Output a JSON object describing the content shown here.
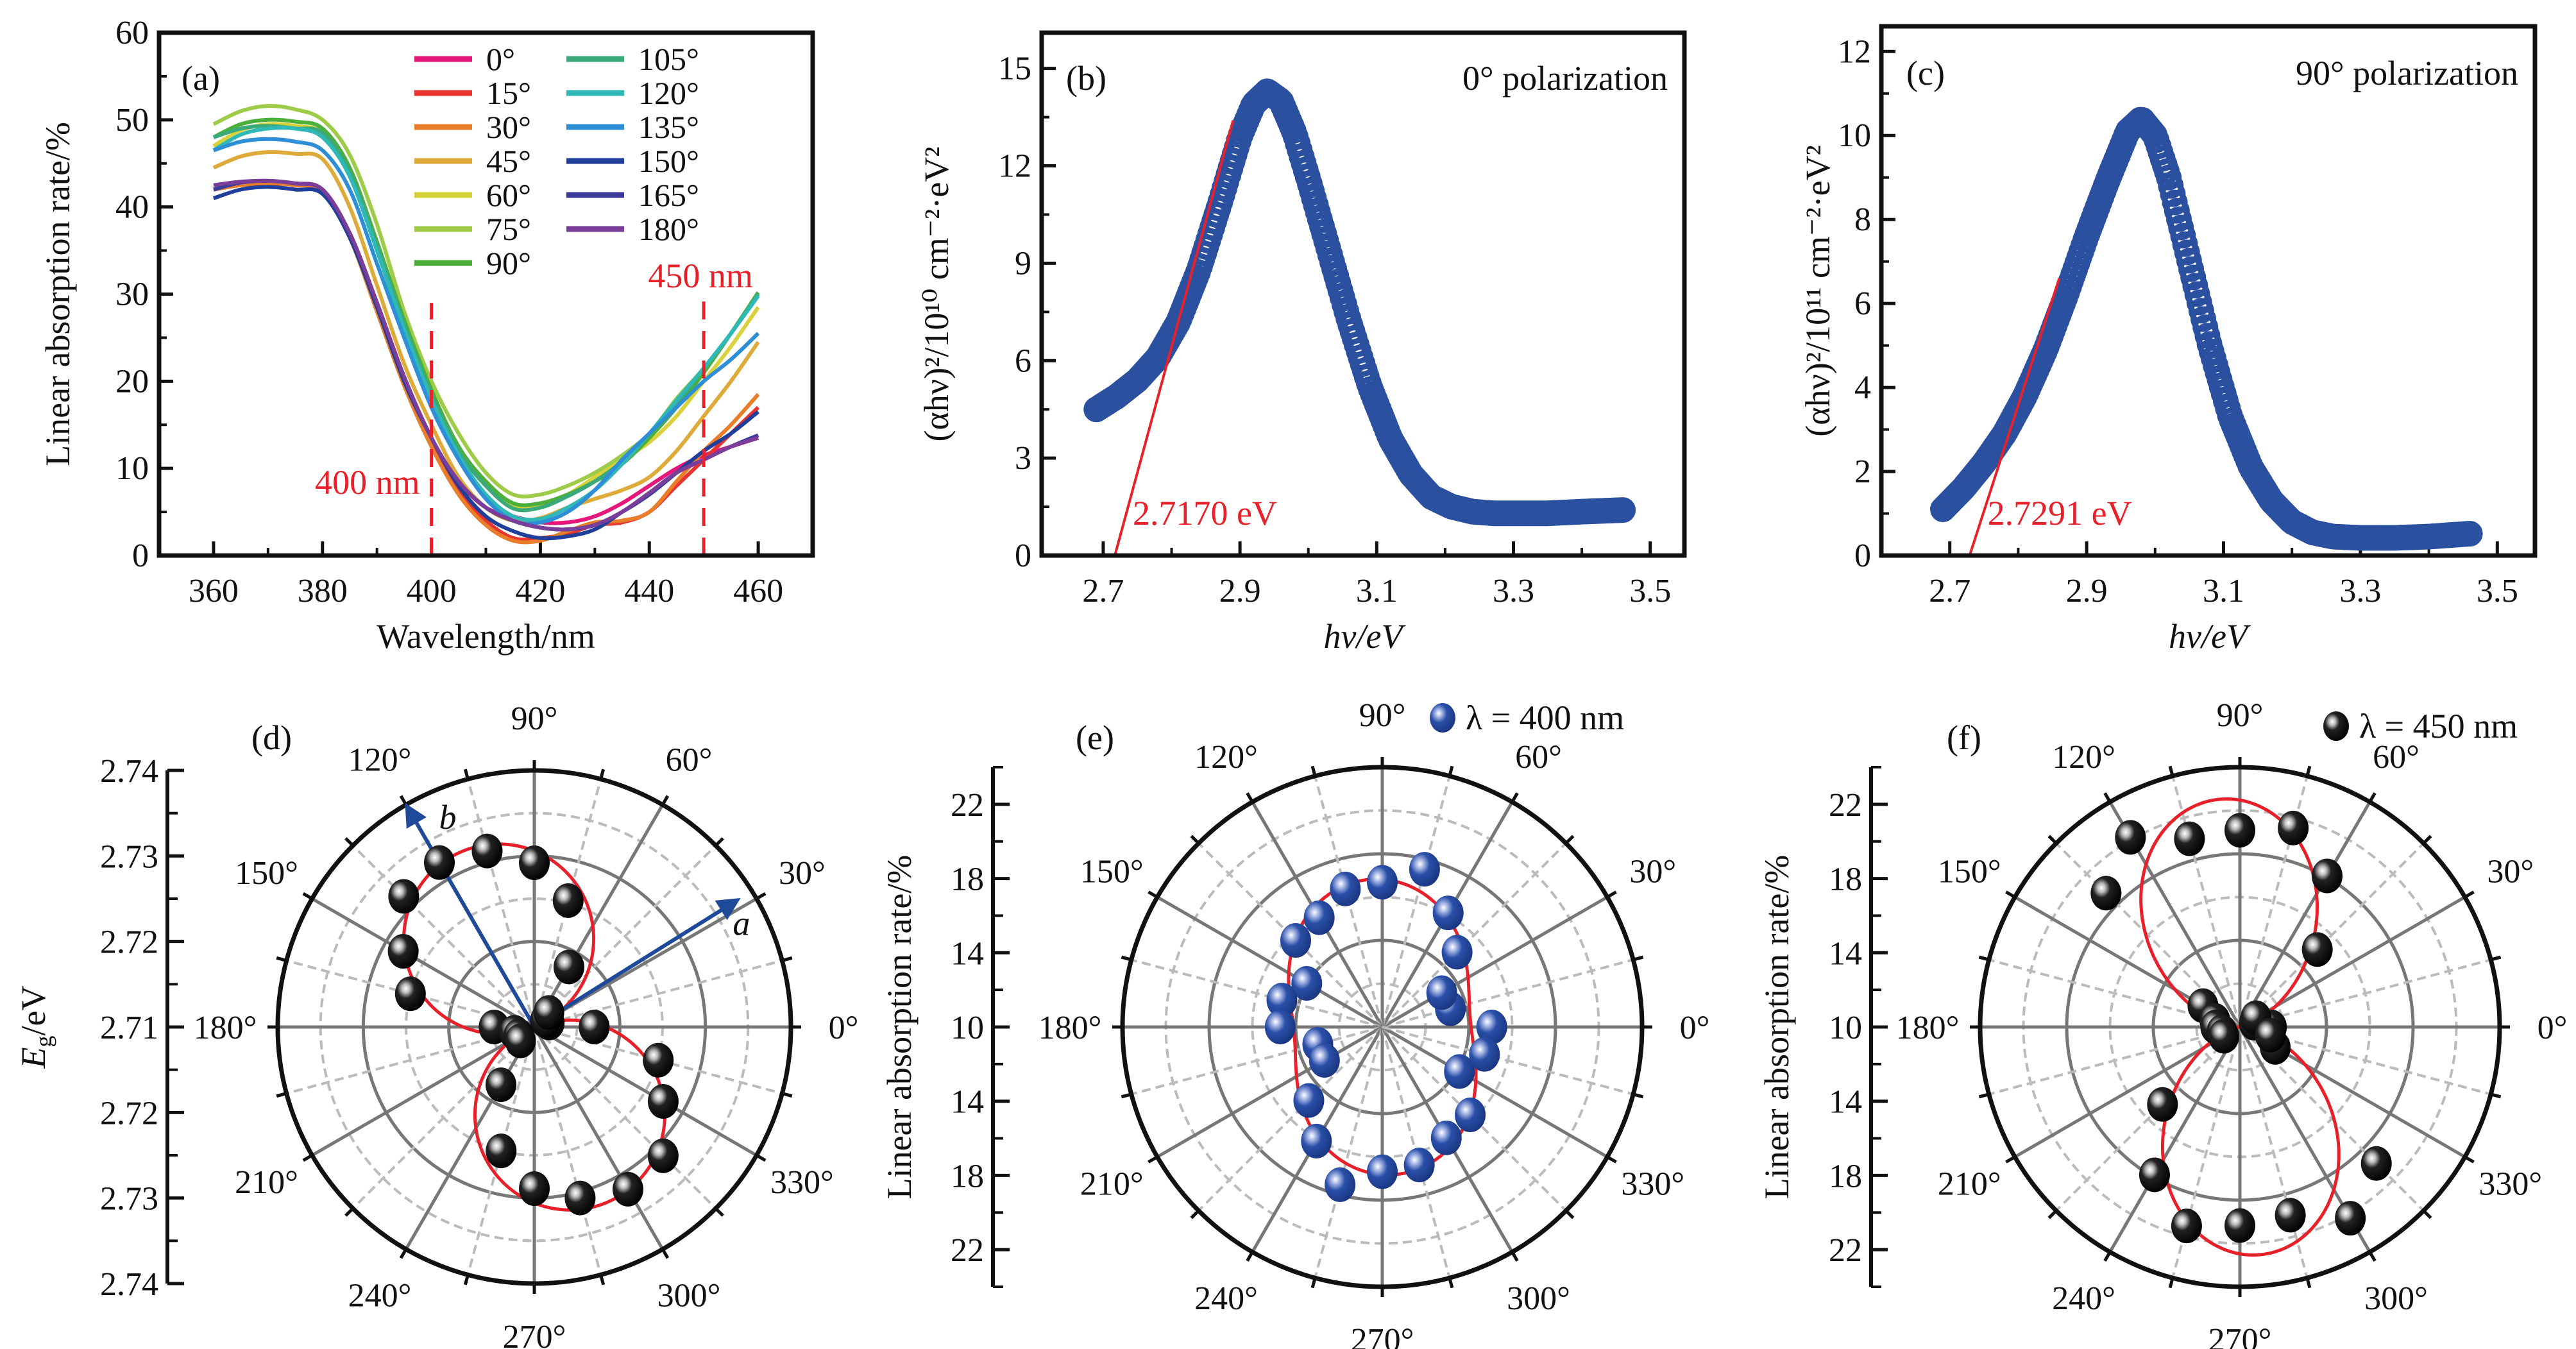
{
  "chart_data": [
    {
      "type": "line",
      "panel_label": "(a)",
      "xlabel": "Wavelength/nm",
      "ylabel": "Linear absorption rate/%",
      "xlim": [
        350,
        470
      ],
      "ylim": [
        0,
        60
      ],
      "xticks": [
        360,
        380,
        400,
        420,
        440,
        460
      ],
      "yticks": [
        0,
        10,
        20,
        30,
        40,
        50,
        60
      ],
      "grid": false,
      "legend_placement": "top-right",
      "x": [
        360,
        365,
        370,
        375,
        380,
        385,
        390,
        395,
        400,
        405,
        410,
        415,
        420,
        425,
        430,
        435,
        440,
        445,
        450,
        455,
        460
      ],
      "series": [
        {
          "name": "0°",
          "color": "#e6177a",
          "values": [
            42.0,
            42.6,
            42.8,
            42.7,
            42.0,
            37.0,
            29.0,
            20.5,
            13.5,
            8.5,
            5.5,
            4.5,
            3.8,
            3.8,
            4.5,
            6.0,
            8.0,
            10.0,
            11.5,
            12.5,
            13.5
          ]
        },
        {
          "name": "15°",
          "color": "#e8342f",
          "values": [
            42.0,
            42.5,
            42.7,
            42.5,
            41.8,
            36.5,
            28.5,
            20.0,
            13.0,
            7.5,
            4.0,
            2.0,
            2.0,
            2.5,
            3.5,
            3.8,
            5.0,
            8.0,
            11.0,
            14.0,
            17.0
          ]
        },
        {
          "name": "30°",
          "color": "#e87e2a",
          "values": [
            42.0,
            42.5,
            42.7,
            42.5,
            41.8,
            36.5,
            28.0,
            19.5,
            12.5,
            7.0,
            3.5,
            1.7,
            1.7,
            2.8,
            3.8,
            4.0,
            5.0,
            8.5,
            12.0,
            15.0,
            18.5
          ]
        },
        {
          "name": "45°",
          "color": "#deaa3a",
          "values": [
            44.5,
            45.8,
            46.3,
            46.1,
            45.5,
            40.0,
            31.0,
            22.0,
            15.0,
            9.0,
            5.5,
            4.0,
            4.3,
            5.5,
            6.5,
            7.5,
            9.0,
            12.0,
            16.0,
            20.0,
            24.5
          ]
        },
        {
          "name": "60°",
          "color": "#d9d23a",
          "values": [
            47.0,
            48.8,
            49.5,
            49.3,
            48.5,
            44.0,
            35.0,
            26.0,
            18.0,
            12.0,
            8.0,
            5.8,
            5.8,
            7.0,
            9.0,
            11.0,
            13.0,
            16.0,
            20.0,
            24.0,
            28.5
          ]
        },
        {
          "name": "75°",
          "color": "#9ecb48",
          "values": [
            49.5,
            51.0,
            51.6,
            51.2,
            50.0,
            46.0,
            38.0,
            28.0,
            20.0,
            14.0,
            9.5,
            7.0,
            7.0,
            8.0,
            9.5,
            11.5,
            14.0,
            18.0,
            21.5,
            25.5,
            30.0
          ]
        },
        {
          "name": "90°",
          "color": "#4caf3a",
          "values": [
            48.0,
            49.5,
            50.0,
            49.8,
            49.0,
            44.5,
            36.0,
            27.0,
            19.0,
            12.5,
            8.5,
            6.0,
            6.0,
            7.0,
            8.5,
            10.5,
            13.5,
            17.0,
            21.0,
            25.5,
            30.2
          ]
        },
        {
          "name": "105°",
          "color": "#3aaa7a",
          "values": [
            48.0,
            49.0,
            49.3,
            49.0,
            48.5,
            44.0,
            35.5,
            26.5,
            18.5,
            12.0,
            8.0,
            5.4,
            5.5,
            6.8,
            8.5,
            10.8,
            14.0,
            17.5,
            21.5,
            25.5,
            30.0
          ]
        },
        {
          "name": "120°",
          "color": "#2fb8b8",
          "values": [
            46.5,
            48.3,
            49.0,
            49.0,
            48.0,
            43.5,
            35.0,
            26.0,
            18.0,
            11.5,
            7.0,
            4.5,
            4.2,
            5.5,
            7.5,
            10.5,
            14.0,
            17.8,
            21.5,
            25.5,
            29.8
          ]
        },
        {
          "name": "135°",
          "color": "#2e8fd6",
          "values": [
            46.5,
            47.5,
            47.8,
            47.5,
            46.5,
            42.0,
            33.5,
            25.0,
            17.0,
            11.0,
            6.5,
            4.0,
            3.8,
            5.0,
            7.5,
            11.0,
            14.0,
            17.0,
            20.0,
            22.5,
            25.5
          ]
        },
        {
          "name": "150°",
          "color": "#1f3f9a",
          "values": [
            41.0,
            42.0,
            42.3,
            42.0,
            41.5,
            36.5,
            28.5,
            20.0,
            13.5,
            8.0,
            4.5,
            2.8,
            2.0,
            2.2,
            3.0,
            5.0,
            7.0,
            9.5,
            12.0,
            14.0,
            16.5
          ]
        },
        {
          "name": "165°",
          "color": "#3b3b9a",
          "values": [
            42.0,
            42.8,
            43.0,
            42.7,
            42.0,
            37.0,
            29.0,
            20.5,
            13.5,
            8.5,
            5.5,
            4.0,
            3.2,
            3.0,
            3.5,
            5.0,
            7.0,
            9.5,
            11.0,
            12.5,
            13.8
          ]
        },
        {
          "name": "180°",
          "color": "#7a3d9a",
          "values": [
            42.5,
            42.9,
            43.0,
            42.7,
            42.0,
            37.0,
            29.0,
            20.5,
            13.5,
            8.5,
            5.5,
            4.0,
            3.2,
            3.0,
            3.5,
            5.0,
            7.2,
            9.5,
            11.0,
            12.5,
            13.5
          ]
        }
      ],
      "annotations": [
        {
          "text": "400 nm",
          "x": 400,
          "color": "#e8202a"
        },
        {
          "text": "450 nm",
          "x": 450,
          "color": "#e8202a"
        }
      ]
    },
    {
      "type": "scatter",
      "panel_label": "(b)",
      "title": "0° polarization",
      "xlabel": "hν/eV",
      "ylabel": "(αhν)²/10¹⁰ cm⁻²·eV²",
      "xlim": [
        2.61,
        3.55
      ],
      "ylim": [
        0,
        16.1
      ],
      "xticks": [
        2.7,
        2.9,
        3.1,
        3.3,
        3.5
      ],
      "yticks": [
        0,
        3,
        6,
        9,
        12,
        15
      ],
      "grid": false,
      "marker_color": "#2b50a0",
      "x": [
        2.69,
        2.72,
        2.75,
        2.78,
        2.81,
        2.84,
        2.87,
        2.9,
        2.92,
        2.94,
        2.96,
        2.98,
        3.0,
        3.03,
        3.06,
        3.09,
        3.12,
        3.15,
        3.18,
        3.21,
        3.24,
        3.27,
        3.3,
        3.35,
        3.4,
        3.46
      ],
      "y": [
        4.5,
        4.9,
        5.4,
        6.1,
        7.2,
        8.8,
        10.8,
        12.9,
        13.9,
        14.3,
        14.0,
        13.0,
        11.6,
        9.4,
        7.2,
        5.2,
        3.6,
        2.5,
        1.8,
        1.5,
        1.35,
        1.3,
        1.3,
        1.3,
        1.35,
        1.4
      ],
      "fit": {
        "x": [
          2.717,
          2.89
        ],
        "y": [
          0,
          13.4
        ],
        "label": "2.7170 eV",
        "color": "#e8202a"
      }
    },
    {
      "type": "scatter",
      "panel_label": "(c)",
      "title": "90° polarization",
      "xlabel": "hν/eV",
      "ylabel": "(αhν)²/10¹¹ cm⁻²·eV²",
      "xlim": [
        2.6,
        3.555
      ],
      "ylim": [
        0,
        12.6
      ],
      "xticks": [
        2.7,
        2.9,
        3.1,
        3.3,
        3.5
      ],
      "yticks": [
        0,
        2,
        4,
        6,
        8,
        10,
        12
      ],
      "grid": false,
      "marker_color": "#2b50a0",
      "x": [
        2.69,
        2.72,
        2.75,
        2.78,
        2.81,
        2.84,
        2.87,
        2.9,
        2.93,
        2.96,
        2.98,
        3.0,
        3.02,
        3.05,
        3.08,
        3.11,
        3.14,
        3.17,
        3.2,
        3.23,
        3.26,
        3.3,
        3.35,
        3.4,
        3.46
      ],
      "y": [
        1.1,
        1.6,
        2.2,
        2.9,
        3.8,
        4.9,
        6.2,
        7.6,
        8.9,
        10.1,
        10.4,
        10.0,
        9.0,
        7.0,
        5.0,
        3.3,
        2.1,
        1.3,
        0.8,
        0.55,
        0.45,
        0.42,
        0.42,
        0.45,
        0.52
      ],
      "fit": {
        "x": [
          2.729,
          2.86
        ],
        "y": [
          0,
          6.6
        ],
        "label": "2.7291 eV",
        "color": "#e8202a"
      }
    },
    {
      "type": "polar",
      "panel_label": "(d)",
      "ylabel": {
        "main": "E",
        "sub": "g",
        "unit": "/eV"
      },
      "rlim": [
        2.71,
        2.74
      ],
      "angle_labels": [
        "0°",
        "30°",
        "60°",
        "90°",
        "120°",
        "150°",
        "180°",
        "210°",
        "240°",
        "270°",
        "300°",
        "330°"
      ],
      "radial_tick_labels": [
        "2.74",
        "2.73",
        "2.72",
        "2.71",
        "2.72",
        "2.73",
        "2.74"
      ],
      "marker_color": "#000000",
      "fit_color": "#e8202a",
      "angles": [
        0,
        15,
        30,
        45,
        60,
        75,
        90,
        105,
        120,
        135,
        150,
        165,
        180,
        195,
        210,
        225,
        240,
        255,
        270,
        285,
        300,
        315,
        330,
        345
      ],
      "values": [
        2.717,
        2.7118,
        2.7115,
        2.7124,
        2.7181,
        2.7253,
        2.7292,
        2.7313,
        2.7322,
        2.7316,
        2.7277,
        2.725,
        2.7147,
        2.7124,
        2.7121,
        2.7123,
        2.7178,
        2.725,
        2.7289,
        2.7307,
        2.7319,
        2.7313,
        2.7274,
        2.725
      ],
      "arrows": [
        {
          "label": "a",
          "angle": 32,
          "color": "#1f4a9a"
        },
        {
          "label": "b",
          "angle": 120,
          "color": "#1f4a9a"
        }
      ]
    },
    {
      "type": "polar",
      "panel_label": "(e)",
      "ylabel": "Linear absorption rate/%",
      "legend": "λ = 400 nm",
      "rlim": [
        10,
        24
      ],
      "angle_labels": [
        "0°",
        "30°",
        "60°",
        "90°",
        "120°",
        "150°",
        "180°",
        "210°",
        "240°",
        "270°",
        "300°",
        "330°"
      ],
      "radial_tick_labels": [
        "22",
        "18",
        "14",
        "10",
        "14",
        "18",
        "22"
      ],
      "marker_color": "#2a4fa8",
      "fit_color": "#e8202a",
      "angles": [
        0,
        15,
        30,
        45,
        60,
        75,
        90,
        105,
        120,
        135,
        150,
        165,
        180,
        195,
        210,
        225,
        240,
        255,
        270,
        285,
        300,
        315,
        330,
        345
      ],
      "values": [
        15.9,
        13.8,
        13.7,
        15.7,
        17.1,
        18.8,
        17.8,
        17.7,
        16.8,
        16.6,
        14.7,
        15.6,
        15.5,
        13.6,
        13.6,
        15.6,
        17.1,
        18.8,
        17.8,
        17.7,
        16.9,
        16.7,
        14.8,
        15.7
      ]
    },
    {
      "type": "polar",
      "panel_label": "(f)",
      "ylabel": "Linear absorption rate/%",
      "legend": "λ = 450 nm",
      "rlim": [
        10,
        24
      ],
      "angle_labels": [
        "0°",
        "30°",
        "60°",
        "90°",
        "120°",
        "150°",
        "180°",
        "210°",
        "240°",
        "270°",
        "300°",
        "330°"
      ],
      "radial_tick_labels": [
        "22",
        "18",
        "14",
        "10",
        "14",
        "18",
        "22"
      ],
      "marker_color": "#000000",
      "fit_color": "#e8202a",
      "angles": [
        0,
        15,
        30,
        45,
        60,
        75,
        90,
        105,
        120,
        135,
        150,
        165,
        180,
        195,
        210,
        225,
        240,
        255,
        270,
        285,
        300,
        315,
        330,
        345
      ],
      "values": [
        11.7,
        10.8,
        11.0,
        15.9,
        19.4,
        21.1,
        20.6,
        20.5,
        21.8,
        20.2,
        12.3,
        11.4,
        11.3,
        11.0,
        11.0,
        15.9,
        19.2,
        21.1,
        20.7,
        20.5,
        21.9,
        20.4,
        12.2,
        11.7
      ]
    }
  ]
}
